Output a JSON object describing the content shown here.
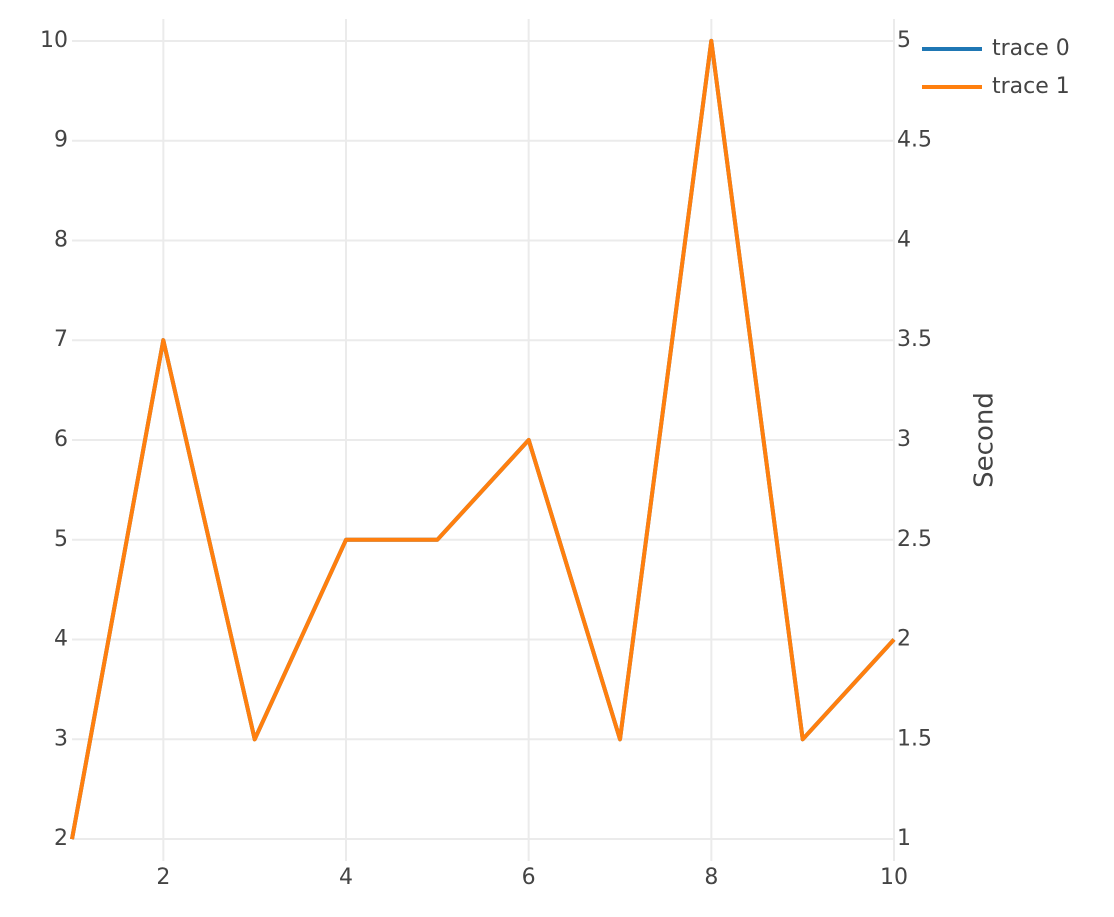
{
  "chart_data": {
    "type": "line",
    "x": [
      1,
      2,
      3,
      4,
      5,
      6,
      7,
      8,
      9,
      10
    ],
    "series": [
      {
        "name": "trace 0",
        "values": [
          2,
          7,
          3,
          5,
          5,
          6,
          3,
          10,
          3,
          4
        ],
        "axis": "y",
        "color": "#1f77b4"
      },
      {
        "name": "trace 1",
        "values": [
          1,
          3.5,
          1.5,
          2.5,
          2.5,
          3,
          1.5,
          5,
          1.5,
          2
        ],
        "axis": "y2",
        "color": "#ff7f0e"
      }
    ],
    "xlim": [
      1,
      10
    ],
    "ylim": [
      1.78,
      10.22
    ],
    "y2lim": [
      0.89,
      5.11
    ],
    "xticks": [
      "2",
      "4",
      "6",
      "8",
      "10"
    ],
    "yticks": [
      "2",
      "3",
      "4",
      "5",
      "6",
      "7",
      "8",
      "9",
      "10"
    ],
    "y2ticks": [
      "1",
      "1.5",
      "2",
      "2.5",
      "3",
      "3.5",
      "4",
      "4.5",
      "5"
    ],
    "y2label": "Second",
    "grid": true,
    "legend_position": "top-right"
  }
}
